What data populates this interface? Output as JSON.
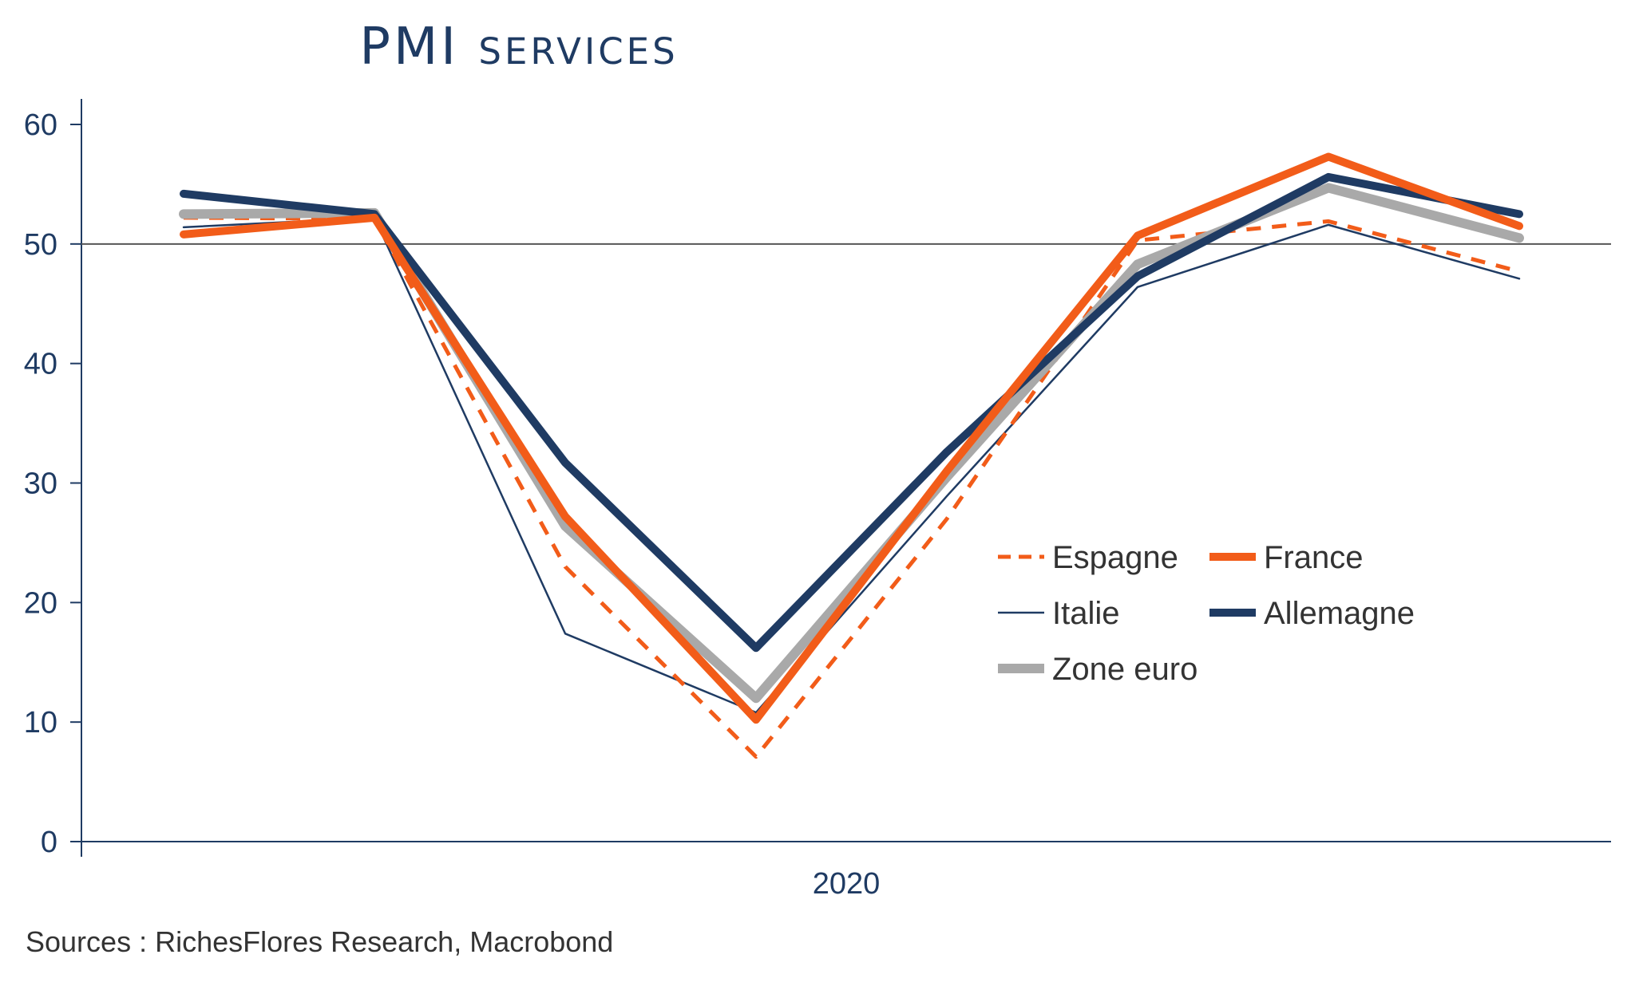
{
  "chart_data": {
    "type": "line",
    "title": "PMI services",
    "xlabel": "",
    "ylabel": "",
    "x_axis_label": "2020",
    "ylim": [
      0,
      60
    ],
    "yticks": [
      0,
      10,
      20,
      30,
      40,
      50,
      60
    ],
    "reference_line": 50,
    "grid": false,
    "legend_position": "center-right",
    "x": [
      1,
      2,
      3,
      4,
      5,
      6,
      7,
      8
    ],
    "series": [
      {
        "name": "Espagne",
        "color": "#f25c19",
        "style": "dashed",
        "width": 5,
        "values": [
          52.2,
          52.1,
          23.0,
          7.1,
          27.0,
          50.3,
          51.9,
          47.7
        ]
      },
      {
        "name": "France",
        "color": "#f25c19",
        "style": "solid",
        "width": 10,
        "values": [
          50.8,
          52.2,
          27.2,
          10.2,
          31.0,
          50.7,
          57.3,
          51.5
        ]
      },
      {
        "name": "Italie",
        "color": "#1f3b63",
        "style": "solid",
        "width": 2.5,
        "values": [
          51.4,
          52.2,
          17.4,
          10.8,
          28.9,
          46.4,
          51.6,
          47.1
        ]
      },
      {
        "name": "Allemagne",
        "color": "#1f3b63",
        "style": "solid",
        "width": 10,
        "values": [
          54.2,
          52.5,
          31.7,
          16.2,
          32.6,
          47.3,
          55.6,
          52.5
        ]
      },
      {
        "name": "Zone euro",
        "color": "#a9a9a9",
        "style": "solid",
        "width": 12,
        "values": [
          52.5,
          52.6,
          26.4,
          12.0,
          30.5,
          48.3,
          54.7,
          50.5
        ]
      }
    ]
  },
  "source": "Sources : RichesFlores Research, Macrobond"
}
